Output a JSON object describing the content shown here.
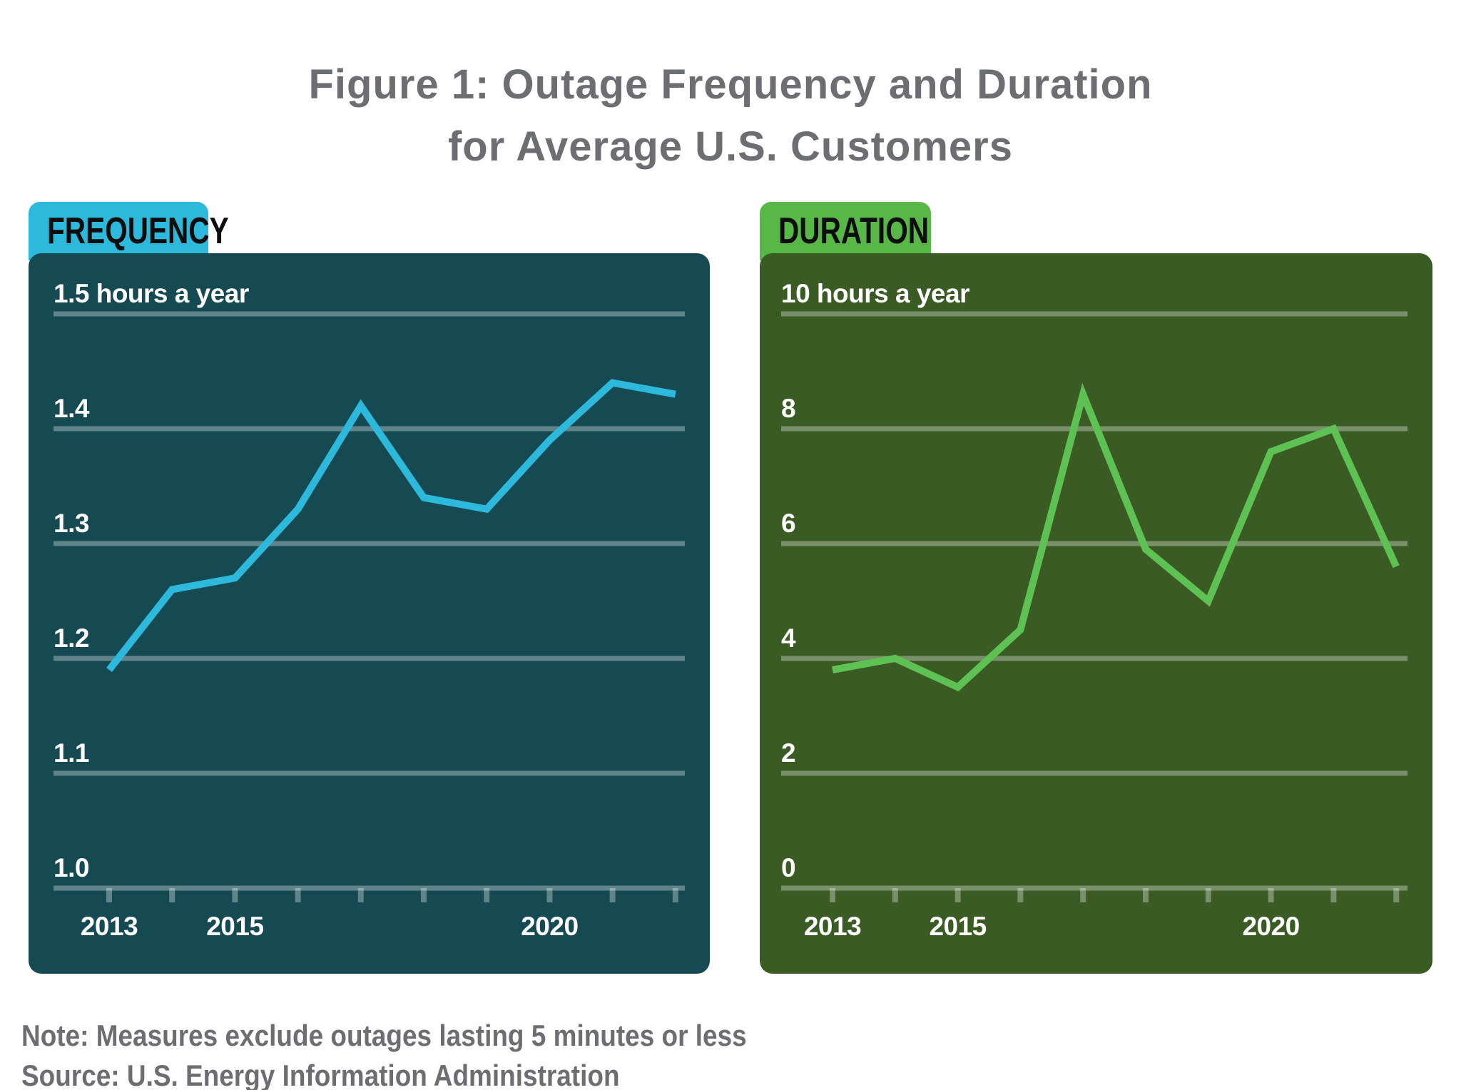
{
  "title": {
    "line1": "Figure 1: Outage Frequency and Duration",
    "line2": "for Average U.S. Customers"
  },
  "note": {
    "line1": "Note: Measures exclude outages lasting 5 minutes or less",
    "line2": "Source: U.S. Energy Information Administration"
  },
  "colors": {
    "title_text": "#6d6e71",
    "note_text": "#6d6e71",
    "frequency_tab": "#2cb9db",
    "frequency_panel": "#164a52",
    "frequency_line": "#2cb9db",
    "duration_tab": "#57b847",
    "duration_panel": "#3a5c24",
    "duration_line": "#5ec153",
    "gridline": "rgba(255,255,255,0.32)",
    "axis_text": "#ffffff",
    "tab_text": "#0d0d0d"
  },
  "chart_data": [
    {
      "type": "line",
      "tab_label": "FREQUENCY",
      "x": [
        2013,
        2014,
        2015,
        2016,
        2017,
        2018,
        2019,
        2020,
        2021,
        2022
      ],
      "values": [
        1.19,
        1.26,
        1.27,
        1.33,
        1.42,
        1.34,
        1.33,
        1.39,
        1.44,
        1.43
      ],
      "ylim": [
        1.0,
        1.5
      ],
      "grid": true,
      "legend": "none",
      "yticks": [
        {
          "value": 1.5,
          "label": "1.5 hours a year"
        },
        {
          "value": 1.4,
          "label": "1.4"
        },
        {
          "value": 1.3,
          "label": "1.3"
        },
        {
          "value": 1.2,
          "label": "1.2"
        },
        {
          "value": 1.1,
          "label": "1.1"
        },
        {
          "value": 1.0,
          "label": "1.0"
        }
      ],
      "xtick_labels": {
        "2013": "2013",
        "2015": "2015",
        "2020": "2020"
      },
      "line_color": "#2cb9db"
    },
    {
      "type": "line",
      "tab_label": "DURATION",
      "x": [
        2013,
        2014,
        2015,
        2016,
        2017,
        2018,
        2019,
        2020,
        2021,
        2022
      ],
      "values": [
        3.8,
        4.0,
        3.5,
        4.5,
        8.6,
        5.9,
        5.0,
        7.6,
        8.0,
        5.6
      ],
      "ylim": [
        0,
        10
      ],
      "grid": true,
      "legend": "none",
      "yticks": [
        {
          "value": 10,
          "label": "10 hours a year"
        },
        {
          "value": 8,
          "label": "8"
        },
        {
          "value": 6,
          "label": "6"
        },
        {
          "value": 4,
          "label": "4"
        },
        {
          "value": 2,
          "label": "2"
        },
        {
          "value": 0,
          "label": "0"
        }
      ],
      "xtick_labels": {
        "2013": "2013",
        "2015": "2015",
        "2020": "2020"
      },
      "line_color": "#5ec153"
    }
  ]
}
